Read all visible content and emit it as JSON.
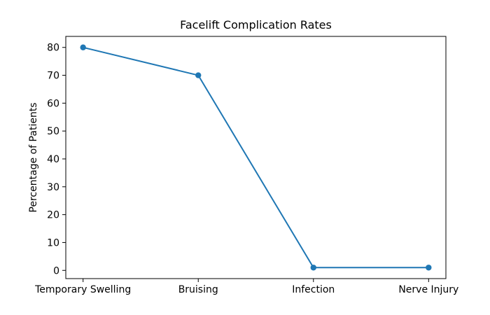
{
  "figure": {
    "background": "#ffffff",
    "axis_color": "#000000"
  },
  "chart_data": {
    "type": "line",
    "title": "Facelift Complication Rates",
    "xlabel": "",
    "ylabel": "Percentage of Patients",
    "categories": [
      "Temporary Swelling",
      "Bruising",
      "Infection",
      "Nerve Injury"
    ],
    "values": [
      80,
      70,
      1,
      1
    ],
    "yticks": [
      0,
      10,
      20,
      30,
      40,
      50,
      60,
      70,
      80
    ],
    "ylim": [
      -2.95,
      83.95
    ],
    "xlim": [
      -0.15,
      3.15
    ],
    "line_color": "#1f77b4",
    "marker": "circle",
    "grid": false,
    "legend": "none"
  }
}
